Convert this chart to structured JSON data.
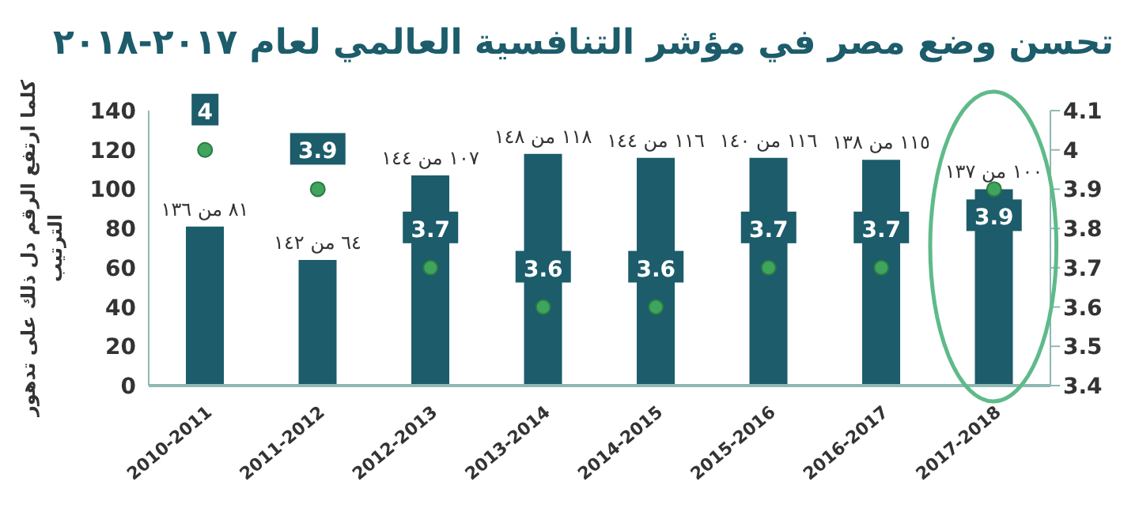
{
  "chart_data": {
    "type": "bar",
    "title": "تحسن وضع مصر في مؤشر التنافسية العالمي لعام ٢٠١٧-٢٠١٨",
    "ylabel": "كلما ارتفع الرقم دل ذلك على تدهور الترتيب",
    "categories": [
      "2010-2011",
      "2011-2012",
      "2012-2013",
      "2013-2014",
      "2014-2015",
      "2015-2016",
      "2016-2017",
      "2017-2018"
    ],
    "series": [
      {
        "type": "bar",
        "color": "#1c5c6b",
        "values": [
          81,
          64,
          107,
          118,
          116,
          116,
          115,
          100
        ],
        "value_labels": [
          "٨١ من ١٣٦",
          "٦٤ من ١٤٢",
          "١٠٧ من ١٤٤",
          "١١٨ من ١٤٨",
          "١١٦ من ١٤٤",
          "١١٦ من ١٤٠",
          "١١٥ من ١٣٨",
          "١٠٠ من ١٣٧"
        ]
      },
      {
        "type": "scatter",
        "axis": "y2",
        "color": "#3fa45c",
        "values": [
          4,
          3.9,
          3.7,
          3.6,
          3.6,
          3.7,
          3.7,
          3.9
        ]
      }
    ],
    "ylim": [
      0,
      140
    ],
    "yticks": [
      0,
      20,
      40,
      60,
      80,
      100,
      120,
      140
    ],
    "y2lim": [
      3.4,
      4.1
    ],
    "y2ticks": [
      3.4,
      3.5,
      3.6,
      3.7,
      3.8,
      3.9,
      4,
      4.1
    ],
    "data_labels": true
  }
}
